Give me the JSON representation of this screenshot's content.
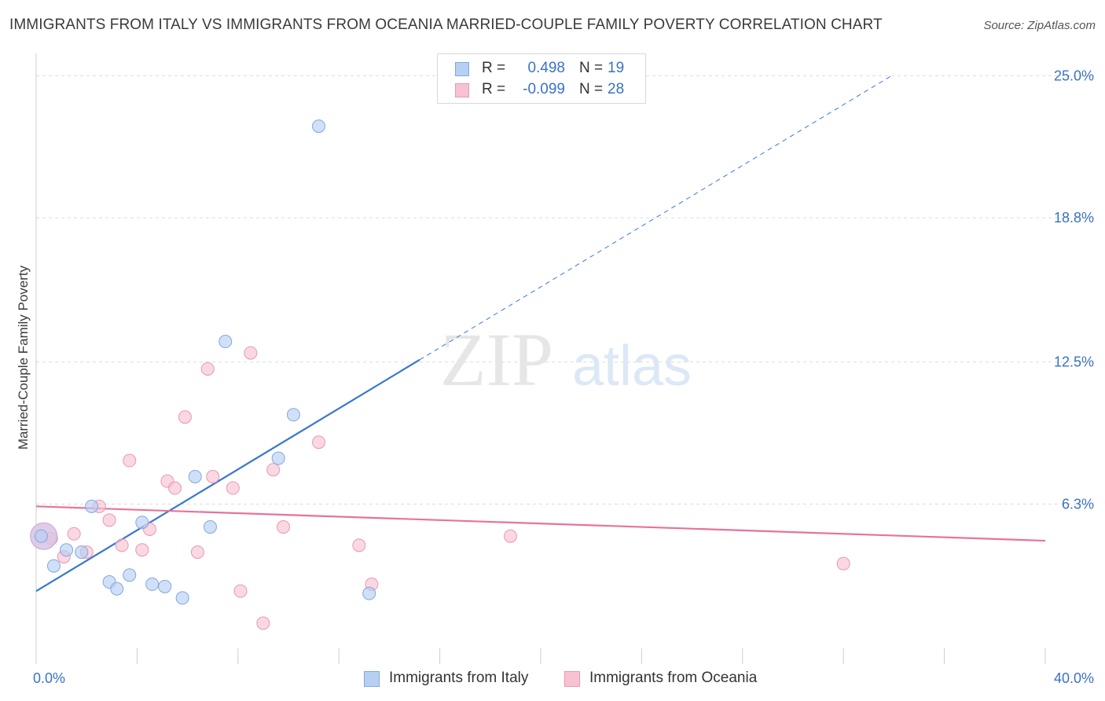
{
  "header": {
    "title": "IMMIGRANTS FROM ITALY VS IMMIGRANTS FROM OCEANIA MARRIED-COUPLE FAMILY POVERTY CORRELATION CHART",
    "source": "Source: ZipAtlas.com"
  },
  "legend": {
    "italy": {
      "r_label": "R =",
      "r_value": "0.498",
      "n_label": "N =",
      "n_value": "19"
    },
    "oceania": {
      "r_label": "R =",
      "r_value": "-0.099",
      "n_label": "N =",
      "n_value": "28"
    }
  },
  "watermark": {
    "zip": "ZIP",
    "atlas": "atlas"
  },
  "colors": {
    "italy_fill": "#b7d0f2",
    "italy_stroke": "#7fa8e0",
    "italy_line": "#3a78d0",
    "oceania_fill": "#f7c3d3",
    "oceania_stroke": "#ea97b2",
    "oceania_line": "#e8729a",
    "tick_text": "#3a72c4",
    "grid": "#dcdcdc"
  },
  "chart_data": {
    "type": "scatter",
    "title": "IMMIGRANTS FROM ITALY VS IMMIGRANTS FROM OCEANIA MARRIED-COUPLE FAMILY POVERTY CORRELATION CHART",
    "xlabel": "",
    "ylabel": "Married-Couple Family Poverty",
    "xlim": [
      0,
      40
    ],
    "ylim": [
      0,
      25.6
    ],
    "x_tick_labels": [
      "0.0%",
      "40.0%"
    ],
    "y_ticks": [
      6.3,
      12.5,
      18.8,
      25.0
    ],
    "y_tick_labels": [
      "6.3%",
      "12.5%",
      "18.8%",
      "25.0%"
    ],
    "series": [
      {
        "name": "Immigrants from Italy",
        "points": [
          [
            0.2,
            4.9
          ],
          [
            0.7,
            3.6
          ],
          [
            1.2,
            4.3
          ],
          [
            1.8,
            4.2
          ],
          [
            2.2,
            6.2
          ],
          [
            2.9,
            2.9
          ],
          [
            3.2,
            2.6
          ],
          [
            3.7,
            3.2
          ],
          [
            4.2,
            5.5
          ],
          [
            4.6,
            2.8
          ],
          [
            5.1,
            2.7
          ],
          [
            5.8,
            2.2
          ],
          [
            6.3,
            7.5
          ],
          [
            6.9,
            5.3
          ],
          [
            7.5,
            13.4
          ],
          [
            9.6,
            8.3
          ],
          [
            10.2,
            10.2
          ],
          [
            11.2,
            22.8
          ],
          [
            13.2,
            2.4
          ]
        ],
        "trend": {
          "x0": 0,
          "y0": 2.5,
          "x1": 15.2,
          "y1": 12.6,
          "dashed_to_x": 33.9,
          "dashed_to_y": 25.0
        }
      },
      {
        "name": "Immigrants from Oceania",
        "points": [
          [
            0.6,
            4.8
          ],
          [
            1.1,
            4.0
          ],
          [
            1.5,
            5.0
          ],
          [
            2.0,
            4.2
          ],
          [
            2.5,
            6.2
          ],
          [
            2.9,
            5.6
          ],
          [
            3.4,
            4.5
          ],
          [
            3.7,
            8.2
          ],
          [
            4.2,
            4.3
          ],
          [
            4.5,
            5.2
          ],
          [
            5.2,
            7.3
          ],
          [
            5.5,
            7.0
          ],
          [
            5.9,
            10.1
          ],
          [
            6.4,
            4.2
          ],
          [
            6.8,
            12.2
          ],
          [
            7.0,
            7.5
          ],
          [
            7.8,
            7.0
          ],
          [
            8.1,
            2.5
          ],
          [
            8.5,
            12.9
          ],
          [
            9.0,
            1.1
          ],
          [
            9.4,
            7.8
          ],
          [
            9.8,
            5.3
          ],
          [
            11.2,
            9.0
          ],
          [
            12.8,
            4.5
          ],
          [
            13.3,
            2.8
          ],
          [
            18.8,
            4.9
          ],
          [
            32.0,
            3.7
          ],
          [
            0.3,
            4.9
          ]
        ],
        "trend": {
          "x0": 0,
          "y0": 6.2,
          "x1": 40,
          "y1": 4.7
        }
      }
    ],
    "legend_position": "top-center"
  }
}
